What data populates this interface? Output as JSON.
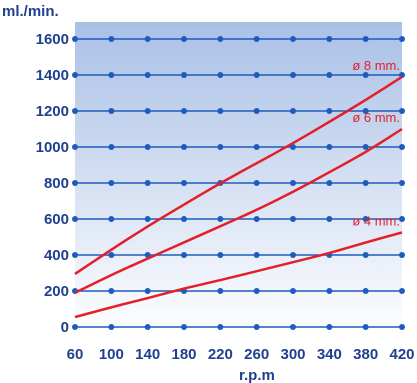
{
  "chart_data": {
    "type": "line",
    "ylabel": "ml./min.",
    "xlabel": "r.p.m",
    "xlim": [
      60,
      420
    ],
    "ylim": [
      0,
      1600
    ],
    "x_ticks": [
      60,
      100,
      140,
      180,
      220,
      260,
      300,
      340,
      380,
      420
    ],
    "y_ticks": [
      0,
      200,
      400,
      600,
      800,
      1000,
      1200,
      1400,
      1600
    ],
    "grid": true,
    "colors": {
      "series": "#e3202a",
      "grid": "#1f5bbf",
      "text": "#1f3f8f",
      "bg_top": "#a9c0e6",
      "bg_bottom": "#ffffff"
    },
    "series": [
      {
        "name": "ø 8 mm.",
        "x": [
          60,
          100,
          140,
          180,
          220,
          260,
          300,
          340,
          380,
          420
        ],
        "y": [
          295,
          430,
          560,
          680,
          800,
          910,
          1020,
          1140,
          1260,
          1390
        ]
      },
      {
        "name": "ø 6 mm.",
        "x": [
          60,
          100,
          140,
          180,
          220,
          260,
          300,
          340,
          380,
          420
        ],
        "y": [
          190,
          290,
          380,
          470,
          560,
          650,
          750,
          860,
          970,
          1100
        ]
      },
      {
        "name": "ø 4 mm.",
        "x": [
          60,
          100,
          140,
          180,
          220,
          260,
          300,
          340,
          380,
          420
        ],
        "y": [
          55,
          110,
          160,
          215,
          260,
          310,
          360,
          410,
          470,
          525
        ]
      }
    ]
  }
}
